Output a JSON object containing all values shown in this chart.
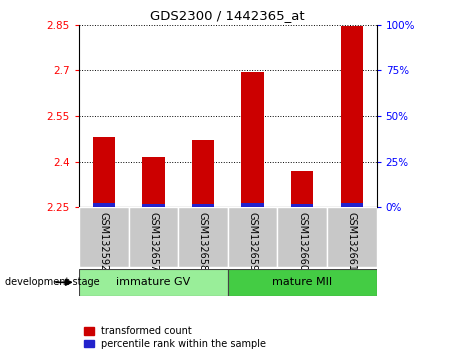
{
  "title": "GDS2300 / 1442365_at",
  "samples": [
    "GSM132592",
    "GSM132657",
    "GSM132658",
    "GSM132659",
    "GSM132660",
    "GSM132661"
  ],
  "transformed_counts": [
    2.48,
    2.415,
    2.47,
    2.695,
    2.37,
    2.845
  ],
  "percentile_ranks_height": [
    0.012,
    0.01,
    0.01,
    0.012,
    0.01,
    0.012
  ],
  "ymin": 2.25,
  "ymax": 2.85,
  "yticks": [
    2.25,
    2.4,
    2.55,
    2.7,
    2.85
  ],
  "right_ytick_percents": [
    0,
    25,
    50,
    75,
    100
  ],
  "right_ytick_labels": [
    "0%",
    "25%",
    "50%",
    "75%",
    "100%"
  ],
  "groups": [
    {
      "label": "immature GV",
      "cols": [
        0,
        1,
        2
      ],
      "color": "#99ee99"
    },
    {
      "label": "mature MII",
      "cols": [
        3,
        4,
        5
      ],
      "color": "#44cc44"
    }
  ],
  "group_label": "development stage",
  "bar_color_red": "#cc0000",
  "bar_color_blue": "#2222cc",
  "bar_width": 0.45,
  "tick_area_bg": "#c8c8c8",
  "legend_red_label": "transformed count",
  "legend_blue_label": "percentile rank within the sample"
}
